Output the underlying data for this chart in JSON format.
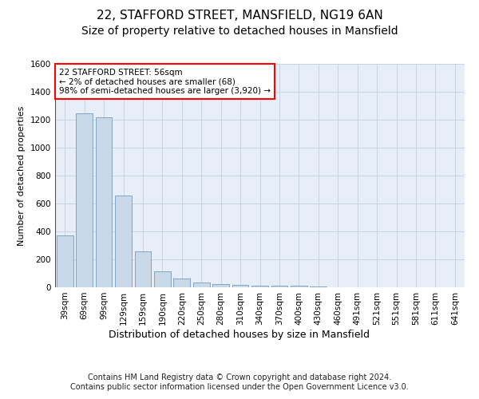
{
  "title_line1": "22, STAFFORD STREET, MANSFIELD, NG19 6AN",
  "title_line2": "Size of property relative to detached houses in Mansfield",
  "xlabel": "Distribution of detached houses by size in Mansfield",
  "ylabel": "Number of detached properties",
  "footer_line1": "Contains HM Land Registry data © Crown copyright and database right 2024.",
  "footer_line2": "Contains public sector information licensed under the Open Government Licence v3.0.",
  "annotation_line1": "22 STAFFORD STREET: 56sqm",
  "annotation_line2": "← 2% of detached houses are smaller (68)",
  "annotation_line3": "98% of semi-detached houses are larger (3,920) →",
  "categories": [
    "39sqm",
    "69sqm",
    "99sqm",
    "129sqm",
    "159sqm",
    "190sqm",
    "220sqm",
    "250sqm",
    "280sqm",
    "310sqm",
    "340sqm",
    "370sqm",
    "400sqm",
    "430sqm",
    "460sqm",
    "491sqm",
    "521sqm",
    "551sqm",
    "581sqm",
    "611sqm",
    "641sqm"
  ],
  "values": [
    370,
    1245,
    1215,
    655,
    260,
    115,
    65,
    35,
    25,
    15,
    10,
    10,
    10,
    8,
    0,
    0,
    0,
    0,
    0,
    0,
    0
  ],
  "bar_color": "#c8d8e8",
  "bar_edge_color": "#6090b0",
  "annotation_box_color": "white",
  "annotation_box_edge_color": "red",
  "vertical_line_color": "red",
  "ylim": [
    0,
    1600
  ],
  "yticks": [
    0,
    200,
    400,
    600,
    800,
    1000,
    1200,
    1400,
    1600
  ],
  "grid_color": "#c8d4e4",
  "bg_color": "#e8eef8",
  "title1_fontsize": 11,
  "title2_fontsize": 10,
  "ylabel_fontsize": 8,
  "xlabel_fontsize": 9,
  "tick_fontsize": 7.5,
  "annotation_fontsize": 7.5,
  "footer_fontsize": 7
}
